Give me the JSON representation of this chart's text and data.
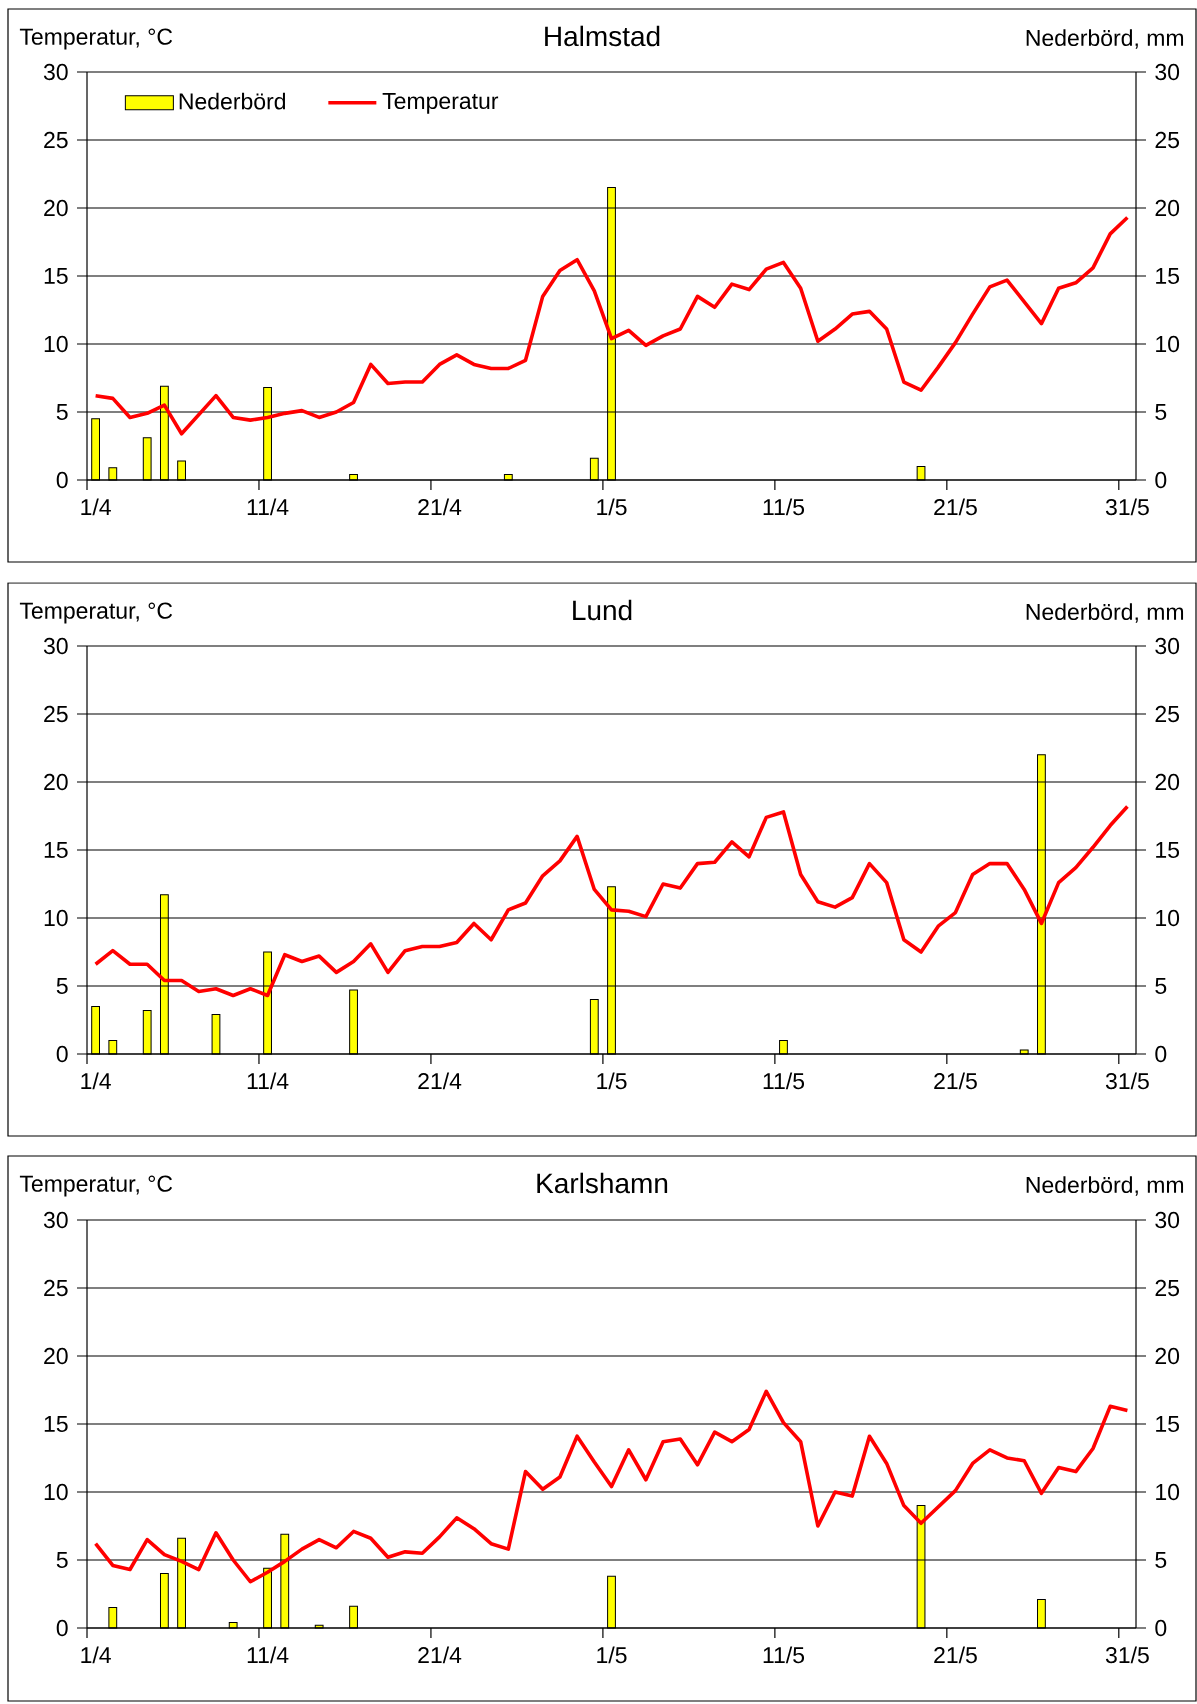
{
  "chart_data": [
    {
      "type": "bar",
      "title": "Halmstad",
      "ylabel": "Temperatur, °C",
      "y2label": "Nederbörd, mm",
      "categories": [
        "1/4",
        null,
        null,
        null,
        null,
        null,
        null,
        null,
        null,
        null,
        "11/4",
        null,
        null,
        null,
        null,
        null,
        null,
        null,
        null,
        null,
        "21/4",
        null,
        null,
        null,
        null,
        null,
        null,
        null,
        null,
        null,
        "1/5",
        null,
        null,
        null,
        null,
        null,
        null,
        null,
        null,
        null,
        "11/5",
        null,
        null,
        null,
        null,
        null,
        null,
        null,
        null,
        null,
        "21/5",
        null,
        null,
        null,
        null,
        null,
        null,
        null,
        null,
        null,
        "31/5"
      ],
      "series": [
        {
          "name": "Nederbörd",
          "axis": "y2",
          "color": "#ffff00",
          "values": [
            4.5,
            0.9,
            null,
            3.1,
            6.9,
            1.4,
            null,
            null,
            null,
            null,
            6.8,
            null,
            null,
            null,
            null,
            0.4,
            null,
            null,
            null,
            null,
            null,
            null,
            null,
            null,
            0.4,
            null,
            null,
            null,
            null,
            1.6,
            21.5,
            null,
            null,
            null,
            null,
            null,
            null,
            null,
            null,
            null,
            null,
            null,
            null,
            null,
            null,
            null,
            null,
            null,
            1.0,
            null,
            null,
            null,
            null,
            null,
            null,
            null,
            null,
            null,
            null,
            null,
            null
          ]
        },
        {
          "name": "Temperatur",
          "type": "line",
          "color": "#ff0000",
          "values": [
            6.2,
            6.0,
            4.6,
            4.9,
            5.5,
            3.4,
            4.8,
            6.2,
            4.6,
            4.4,
            4.6,
            4.9,
            5.1,
            4.6,
            5.0,
            5.7,
            8.5,
            7.1,
            7.2,
            7.2,
            8.5,
            9.2,
            8.5,
            8.2,
            8.2,
            8.8,
            13.5,
            15.4,
            16.2,
            13.9,
            10.4,
            11.0,
            9.9,
            10.6,
            11.1,
            13.5,
            12.7,
            14.4,
            14.0,
            15.5,
            16.0,
            14.1,
            10.2,
            11.1,
            12.2,
            12.4,
            11.1,
            7.2,
            6.6,
            8.3,
            10.1,
            12.2,
            14.2,
            14.7,
            13.1,
            11.5,
            14.1,
            14.5,
            15.6,
            18.1,
            19.3
          ]
        }
      ],
      "ylim": [
        0,
        30
      ],
      "yticks": [
        0,
        5,
        10,
        15,
        20,
        25,
        30
      ],
      "y2lim": [
        0,
        30
      ],
      "y2ticks": [
        0,
        5,
        10,
        15,
        20,
        25,
        30
      ],
      "grid": "y",
      "legend": "top left"
    },
    {
      "type": "bar",
      "title": "Lund",
      "ylabel": "Temperatur, °C",
      "y2label": "Nederbörd, mm",
      "categories": [
        "1/4",
        null,
        null,
        null,
        null,
        null,
        null,
        null,
        null,
        null,
        "11/4",
        null,
        null,
        null,
        null,
        null,
        null,
        null,
        null,
        null,
        "21/4",
        null,
        null,
        null,
        null,
        null,
        null,
        null,
        null,
        null,
        "1/5",
        null,
        null,
        null,
        null,
        null,
        null,
        null,
        null,
        null,
        "11/5",
        null,
        null,
        null,
        null,
        null,
        null,
        null,
        null,
        null,
        "21/5",
        null,
        null,
        null,
        null,
        null,
        null,
        null,
        null,
        null,
        "31/5"
      ],
      "series": [
        {
          "axis": "y2",
          "color": "#ffff00",
          "values": [
            3.5,
            1.0,
            null,
            3.2,
            11.7,
            null,
            null,
            2.9,
            null,
            null,
            7.5,
            null,
            null,
            null,
            null,
            4.7,
            null,
            null,
            null,
            null,
            null,
            null,
            null,
            null,
            null,
            null,
            null,
            null,
            null,
            4.0,
            12.3,
            null,
            null,
            null,
            null,
            null,
            null,
            null,
            null,
            null,
            1.0,
            null,
            null,
            null,
            null,
            null,
            null,
            null,
            null,
            null,
            null,
            null,
            null,
            null,
            0.3,
            22.0,
            null,
            null,
            null,
            null,
            null
          ]
        },
        {
          "type": "line",
          "color": "#ff0000",
          "values": [
            6.6,
            7.6,
            6.6,
            6.6,
            5.4,
            5.4,
            4.6,
            4.8,
            4.3,
            4.8,
            4.3,
            7.3,
            6.8,
            7.2,
            6.0,
            6.8,
            8.1,
            6.0,
            7.6,
            7.9,
            7.9,
            8.2,
            9.6,
            8.4,
            10.6,
            11.1,
            13.1,
            14.2,
            16.0,
            12.1,
            10.6,
            10.5,
            10.1,
            12.5,
            12.2,
            14.0,
            14.1,
            15.6,
            14.5,
            17.4,
            17.8,
            13.2,
            11.2,
            10.8,
            11.5,
            14.0,
            12.6,
            8.4,
            7.5,
            9.4,
            10.4,
            13.2,
            14.0,
            14.0,
            12.1,
            9.6,
            12.6,
            13.7,
            15.2,
            16.8,
            18.2
          ]
        }
      ],
      "ylim": [
        0,
        30
      ],
      "yticks": [
        0,
        5,
        10,
        15,
        20,
        25,
        30
      ],
      "y2lim": [
        0,
        30
      ],
      "y2ticks": [
        0,
        5,
        10,
        15,
        20,
        25,
        30
      ],
      "grid": "y",
      "legend": false
    },
    {
      "type": "bar",
      "title": "Karlshamn",
      "ylabel": "Temperatur, °C",
      "y2label": "Nederbörd, mm",
      "categories": [
        "1/4",
        null,
        null,
        null,
        null,
        null,
        null,
        null,
        null,
        null,
        "11/4",
        null,
        null,
        null,
        null,
        null,
        null,
        null,
        null,
        null,
        "21/4",
        null,
        null,
        null,
        null,
        null,
        null,
        null,
        null,
        null,
        "1/5",
        null,
        null,
        null,
        null,
        null,
        null,
        null,
        null,
        null,
        "11/5",
        null,
        null,
        null,
        null,
        null,
        null,
        null,
        null,
        null,
        "21/5",
        null,
        null,
        null,
        null,
        null,
        null,
        null,
        null,
        null,
        "31/5"
      ],
      "series": [
        {
          "axis": "y2",
          "color": "#ffff00",
          "values": [
            null,
            1.5,
            null,
            null,
            4.0,
            6.6,
            null,
            null,
            0.4,
            null,
            4.4,
            6.9,
            null,
            0.2,
            null,
            1.6,
            null,
            null,
            null,
            null,
            null,
            null,
            null,
            null,
            null,
            null,
            null,
            null,
            null,
            null,
            3.8,
            null,
            null,
            null,
            null,
            null,
            null,
            null,
            null,
            null,
            null,
            null,
            null,
            null,
            null,
            null,
            null,
            null,
            9.0,
            null,
            null,
            null,
            null,
            null,
            null,
            2.1,
            null,
            null,
            null,
            null,
            null
          ]
        },
        {
          "type": "line",
          "color": "#ff0000",
          "values": [
            6.2,
            4.6,
            4.3,
            6.5,
            5.4,
            4.9,
            4.3,
            7.0,
            5.0,
            3.4,
            4.1,
            4.9,
            5.8,
            6.5,
            5.9,
            7.1,
            6.6,
            5.2,
            5.6,
            5.5,
            6.7,
            8.1,
            7.3,
            6.2,
            5.8,
            11.5,
            10.2,
            11.1,
            14.1,
            12.2,
            10.4,
            13.1,
            10.9,
            13.7,
            13.9,
            12.0,
            14.4,
            13.7,
            14.6,
            17.4,
            15.1,
            13.7,
            7.5,
            10.0,
            9.7,
            14.1,
            12.1,
            9.0,
            7.7,
            8.9,
            10.1,
            12.1,
            13.1,
            12.5,
            12.3,
            9.9,
            11.8,
            11.5,
            13.2,
            16.3,
            16.0
          ]
        }
      ],
      "ylim": [
        0,
        30
      ],
      "yticks": [
        0,
        5,
        10,
        15,
        20,
        25,
        30
      ],
      "y2lim": [
        0,
        30
      ],
      "y2ticks": [
        0,
        5,
        10,
        15,
        20,
        25,
        30
      ],
      "grid": "y",
      "legend": false
    }
  ]
}
